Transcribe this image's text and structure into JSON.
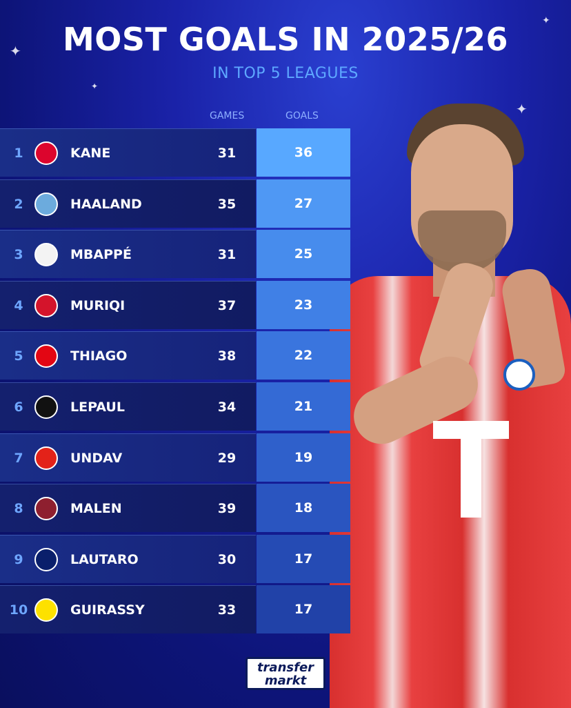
{
  "header": {
    "title": "MOST GOALS IN 2025/26",
    "subtitle": "IN TOP 5 LEAGUES"
  },
  "columns": {
    "games": "GAMES",
    "goals": "GOALS"
  },
  "players": [
    {
      "rank": "1",
      "name": "KANE",
      "games": "31",
      "goals": "36",
      "club_icon": "bayern-crest-icon",
      "club_color": "#dc052d",
      "goal_color": "#58a8ff"
    },
    {
      "rank": "2",
      "name": "HAALAND",
      "games": "35",
      "goals": "27",
      "club_icon": "man-city-crest-icon",
      "club_color": "#6cabdd",
      "goal_color": "#4f98f4"
    },
    {
      "rank": "3",
      "name": "MBAPPÉ",
      "games": "31",
      "goals": "25",
      "club_icon": "real-madrid-crest-icon",
      "club_color": "#f3f3f3",
      "goal_color": "#478ced"
    },
    {
      "rank": "4",
      "name": "MURIQI",
      "games": "37",
      "goals": "23",
      "club_icon": "mallorca-crest-icon",
      "club_color": "#d4142b",
      "goal_color": "#4080e6"
    },
    {
      "rank": "5",
      "name": "THIAGO",
      "games": "38",
      "goals": "22",
      "club_icon": "brentford-crest-icon",
      "club_color": "#e30613",
      "goal_color": "#3a75de"
    },
    {
      "rank": "6",
      "name": "LEPAUL",
      "games": "34",
      "goals": "21",
      "club_icon": "rennes-crest-icon",
      "club_color": "#111111",
      "goal_color": "#346ad5"
    },
    {
      "rank": "7",
      "name": "UNDAV",
      "games": "29",
      "goals": "19",
      "club_icon": "stuttgart-crest-icon",
      "club_color": "#e32219",
      "goal_color": "#2f60cb"
    },
    {
      "rank": "8",
      "name": "MALEN",
      "games": "39",
      "goals": "18",
      "club_icon": "roma-crest-icon",
      "club_color": "#8e1f2f",
      "goal_color": "#2a55c0"
    },
    {
      "rank": "9",
      "name": "LAUTARO",
      "games": "30",
      "goals": "17",
      "club_icon": "inter-crest-icon",
      "club_color": "#0a1f6b",
      "goal_color": "#254bb4"
    },
    {
      "rank": "10",
      "name": "GUIRASSY",
      "games": "33",
      "goals": "17",
      "club_icon": "dortmund-crest-icon",
      "club_color": "#fde100",
      "goal_color": "#2142a8"
    }
  ],
  "brand": {
    "line1": "transfer",
    "line2": "markt"
  }
}
